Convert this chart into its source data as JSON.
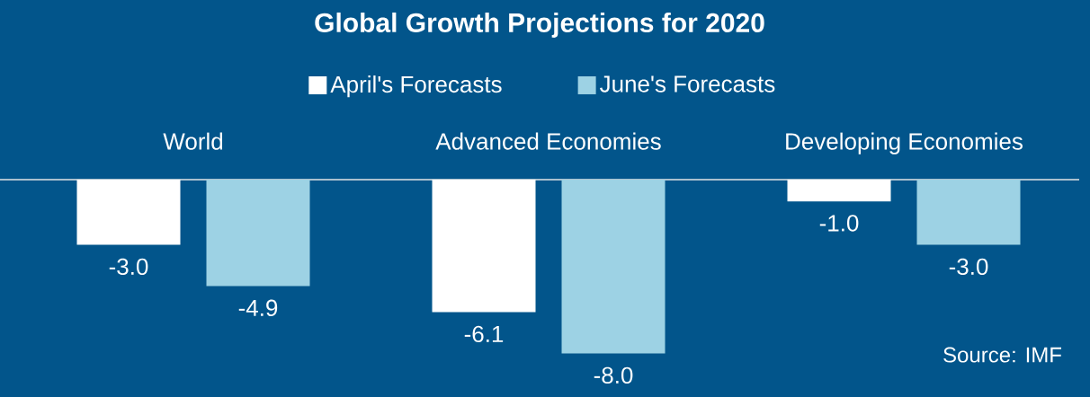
{
  "chart_data": {
    "type": "bar",
    "title": "Global Growth Projections for 2020",
    "categories": [
      "World",
      "Advanced Economies",
      "Developing Economies"
    ],
    "series": [
      {
        "name": "April's Forecasts",
        "color": "#ffffff",
        "values": [
          -3.0,
          -6.1,
          -1.0
        ],
        "value_labels": [
          "-3.0",
          "-6.1",
          "-1.0"
        ]
      },
      {
        "name": "June's Forecasts",
        "color": "#9dd2e4",
        "values": [
          -4.9,
          -8.0,
          -3.0
        ],
        "value_labels": [
          "-4.9",
          "-8.0",
          "-3.0"
        ]
      }
    ],
    "tick_labels": "x",
    "legend": "top",
    "annotations": [
      "Source: IMF"
    ]
  }
}
